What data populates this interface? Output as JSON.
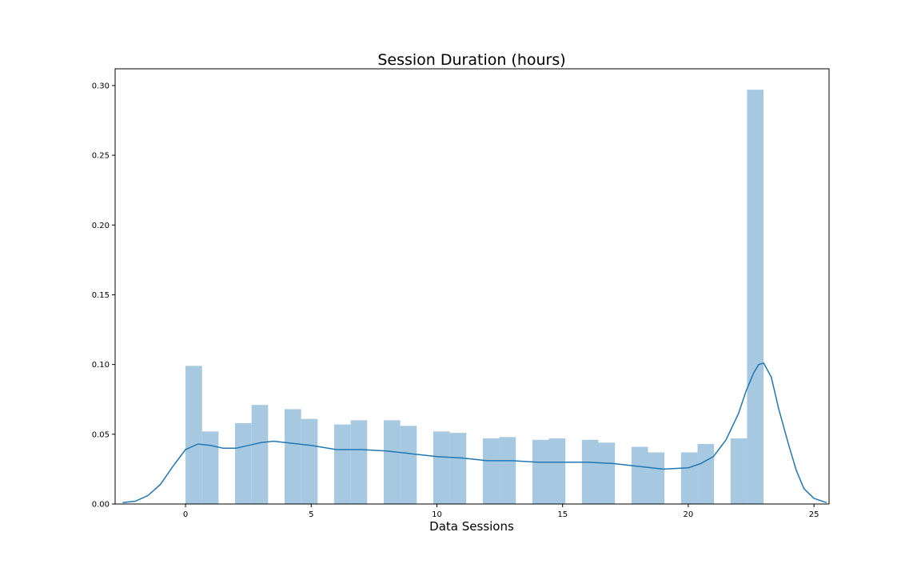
{
  "chart_data": {
    "type": "bar",
    "title": "Session Duration (hours)",
    "xlabel": "Data Sessions",
    "ylabel": "",
    "xlim": [
      -2.8,
      25.6
    ],
    "ylim": [
      0,
      0.312
    ],
    "xticks": [
      0,
      5,
      10,
      15,
      20,
      25
    ],
    "yticks": [
      0.0,
      0.05,
      0.1,
      0.15,
      0.2,
      0.25,
      0.3
    ],
    "xtick_labels": [
      "0",
      "5",
      "10",
      "15",
      "20",
      "25"
    ],
    "ytick_labels": [
      "0.00",
      "0.05",
      "0.10",
      "0.15",
      "0.20",
      "0.25",
      "0.30"
    ],
    "grid": false,
    "colors": {
      "bars": "#a6c8e0",
      "kde": "#1f77b4",
      "frame": "#000000"
    },
    "histogram": {
      "bin_edges": [
        0,
        0.657,
        1.314,
        1.971,
        2.628,
        3.285,
        3.942,
        4.599,
        5.256,
        5.913,
        6.57,
        7.227,
        7.884,
        8.541,
        9.198,
        9.855,
        10.512,
        11.169,
        11.826,
        12.483,
        13.14,
        13.797,
        14.454,
        15.111,
        15.768,
        16.425,
        17.082,
        17.739,
        18.396,
        19.053,
        19.71,
        20.367,
        21.024,
        21.681,
        22.338,
        22.995
      ],
      "values": [
        0.099,
        0.052,
        0,
        0.058,
        0.071,
        0,
        0.068,
        0.061,
        0,
        0.057,
        0.06,
        0,
        0.06,
        0.056,
        0,
        0.052,
        0.051,
        0,
        0.047,
        0.048,
        0,
        0.046,
        0.047,
        0,
        0.046,
        0.044,
        0,
        0.041,
        0.037,
        0,
        0.037,
        0.043,
        0,
        0.047,
        0.297
      ]
    },
    "kde": {
      "x": [
        -2.5,
        -2.0,
        -1.5,
        -1.0,
        -0.5,
        0.0,
        0.5,
        1.0,
        1.5,
        2.0,
        2.5,
        3.0,
        3.5,
        4.0,
        5.0,
        6.0,
        7.0,
        8.0,
        9.0,
        10.0,
        11.0,
        12.0,
        13.0,
        14.0,
        15.0,
        16.0,
        17.0,
        18.0,
        19.0,
        20.0,
        20.5,
        21.0,
        21.5,
        22.0,
        22.3,
        22.6,
        22.8,
        23.0,
        23.3,
        23.6,
        24.0,
        24.3,
        24.6,
        25.0,
        25.5
      ],
      "y": [
        0.001,
        0.002,
        0.006,
        0.014,
        0.027,
        0.039,
        0.043,
        0.042,
        0.04,
        0.04,
        0.042,
        0.044,
        0.045,
        0.044,
        0.042,
        0.039,
        0.039,
        0.038,
        0.036,
        0.034,
        0.033,
        0.031,
        0.031,
        0.03,
        0.03,
        0.03,
        0.029,
        0.027,
        0.025,
        0.026,
        0.029,
        0.034,
        0.046,
        0.065,
        0.081,
        0.094,
        0.1,
        0.101,
        0.091,
        0.068,
        0.042,
        0.024,
        0.011,
        0.004,
        0.001
      ]
    }
  }
}
